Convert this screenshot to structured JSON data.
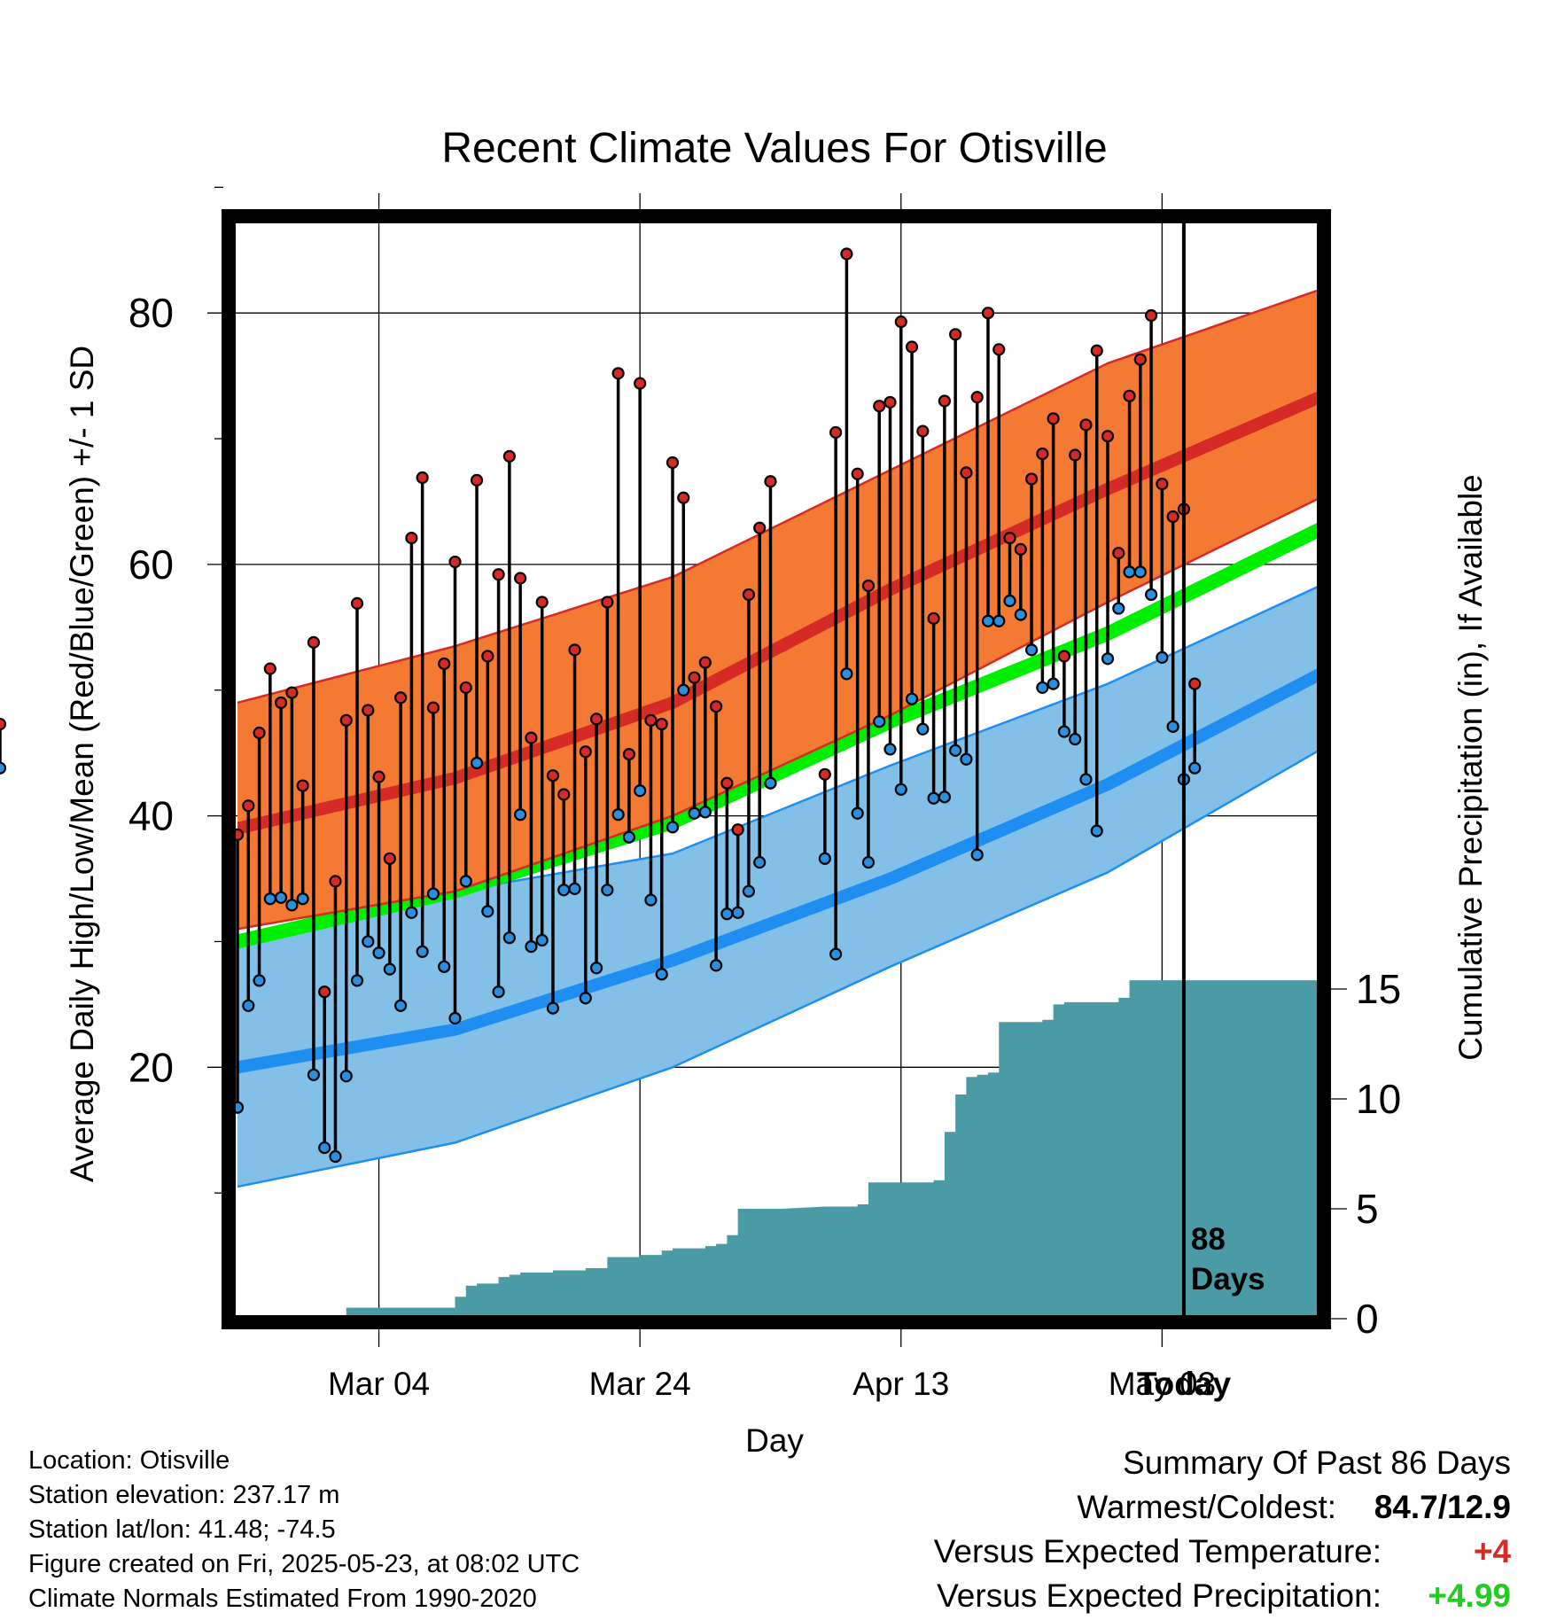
{
  "chart_data": {
    "type": "line",
    "title": "Recent Climate Values For Otisville",
    "xlabel": "Day",
    "ylabel": "Average Daily High/Low/Mean (Red/Blue/Green) +/- 1 SD",
    "y2label": "Cumulative Precipitation (in), If Available",
    "ylim": [
      0,
      90
    ],
    "y2lim": [
      0,
      20
    ],
    "x_tick_labels": [
      "Mar 04",
      "Mar 24",
      "Apr 13",
      "May 03",
      "Today"
    ],
    "y_tick_labels": [
      "20",
      "40",
      "60",
      "80"
    ],
    "y2_tick_labels": [
      "0",
      "5",
      "10",
      "15"
    ],
    "grid": true,
    "today_marker": {
      "label_line1": "88",
      "label_line2": "Days",
      "day_index": 87
    },
    "normals": {
      "day_index": [
        0,
        20,
        40,
        60,
        80,
        100
      ],
      "high_mean": [
        39,
        43,
        49,
        58,
        66,
        73.5
      ],
      "high_upper": [
        49,
        53.5,
        59,
        67.5,
        76,
        82
      ],
      "high_lower": [
        31,
        34,
        40,
        48,
        57,
        65.5
      ],
      "low_mean": [
        20,
        23,
        28.5,
        35,
        42.5,
        51.5
      ],
      "low_upper": [
        30,
        34,
        37,
        44,
        50.5,
        58.5
      ],
      "low_lower": [
        10.5,
        14,
        20,
        28,
        35.5,
        45.5
      ],
      "mean": [
        30,
        34,
        39.5,
        47.5,
        54.5,
        63
      ]
    },
    "series": [
      {
        "name": "Daily High",
        "day_index": [
          0,
          1,
          2,
          3,
          4,
          5,
          6,
          7,
          8,
          9,
          10,
          11,
          12,
          13,
          14,
          15,
          16,
          17,
          18,
          19,
          20,
          21,
          22,
          23,
          24,
          25,
          26,
          27,
          28,
          29,
          30,
          31,
          32,
          33,
          34,
          35,
          36,
          37,
          38,
          39,
          40,
          41,
          42,
          43,
          44,
          45,
          46,
          47,
          48,
          49,
          54,
          55,
          56,
          57,
          58,
          59,
          60,
          61,
          62,
          63,
          64,
          65,
          66,
          67,
          68,
          69,
          70,
          71,
          72,
          73,
          74,
          75,
          76,
          77,
          78,
          79,
          80,
          81,
          82,
          83,
          84,
          85,
          86,
          87,
          88
        ],
        "values": [
          38.5,
          40.8,
          46.6,
          51.7,
          49.0,
          49.8,
          42.4,
          53.8,
          26.0,
          34.8,
          47.6,
          56.9,
          48.4,
          43.1,
          36.6,
          49.4,
          62.1,
          66.9,
          48.6,
          52.1,
          60.2,
          50.2,
          66.7,
          52.7,
          59.2,
          68.6,
          58.9,
          46.2,
          57.0,
          43.2,
          41.7,
          53.2,
          45.1,
          47.7,
          57.0,
          75.2,
          44.9,
          74.4,
          47.6,
          47.3,
          68.1,
          65.3,
          51.0,
          52.2,
          48.7,
          42.6,
          38.9,
          57.6,
          62.9,
          66.6,
          43.3,
          70.5,
          84.7,
          67.2,
          58.3,
          72.6,
          72.9,
          79.3,
          77.3,
          70.6,
          55.7,
          73.0,
          78.3,
          67.3,
          73.3,
          80.0,
          77.1,
          62.1,
          61.2,
          66.8,
          68.8,
          71.6,
          52.7,
          68.7,
          71.1,
          77.0,
          70.2,
          60.9,
          73.4,
          76.3,
          79.8,
          66.4,
          63.8,
          64.4,
          50.5,
          47.3
        ]
      },
      {
        "name": "Daily Low",
        "day_index": [
          0,
          1,
          2,
          3,
          4,
          5,
          6,
          7,
          8,
          9,
          10,
          11,
          12,
          13,
          14,
          15,
          16,
          17,
          18,
          19,
          20,
          21,
          22,
          23,
          24,
          25,
          26,
          27,
          28,
          29,
          30,
          31,
          32,
          33,
          34,
          35,
          36,
          37,
          38,
          39,
          40,
          41,
          42,
          43,
          44,
          45,
          46,
          47,
          48,
          49,
          54,
          55,
          56,
          57,
          58,
          59,
          60,
          61,
          62,
          63,
          64,
          65,
          66,
          67,
          68,
          69,
          70,
          71,
          72,
          73,
          74,
          75,
          76,
          77,
          78,
          79,
          80,
          81,
          82,
          83,
          84,
          85,
          86,
          87,
          88
        ],
        "values": [
          16.8,
          24.9,
          26.9,
          33.4,
          33.5,
          32.9,
          33.4,
          19.4,
          13.6,
          12.9,
          19.3,
          26.9,
          30.0,
          29.1,
          27.8,
          24.9,
          32.3,
          29.2,
          33.8,
          28.0,
          23.9,
          34.8,
          44.2,
          32.4,
          26.0,
          30.3,
          40.1,
          29.6,
          30.1,
          24.7,
          34.1,
          34.2,
          25.5,
          27.9,
          34.1,
          40.1,
          38.3,
          42.0,
          33.3,
          27.4,
          39.1,
          50.0,
          40.2,
          40.3,
          28.1,
          32.2,
          32.3,
          34.0,
          36.3,
          42.6,
          36.6,
          29.0,
          51.3,
          40.2,
          36.3,
          47.5,
          45.3,
          42.1,
          49.3,
          46.9,
          41.4,
          41.5,
          45.2,
          44.5,
          36.9,
          55.5,
          55.5,
          57.1,
          56.0,
          53.2,
          50.2,
          50.5,
          46.7,
          46.1,
          42.9,
          38.8,
          52.5,
          56.5,
          59.4,
          59.4,
          57.6,
          52.6,
          47.1,
          42.9,
          43.8,
          43.8
        ]
      },
      {
        "name": "Cumulative Precipitation",
        "day_index": [
          0,
          9,
          10,
          11,
          19,
          20,
          21,
          22,
          23,
          24,
          25,
          26,
          27,
          28,
          29,
          30,
          31,
          32,
          33,
          34,
          35,
          36,
          37,
          38,
          39,
          40,
          41,
          42,
          43,
          44,
          45,
          46,
          47,
          48,
          49,
          54,
          55,
          56,
          57,
          58,
          59,
          60,
          61,
          62,
          63,
          64,
          65,
          66,
          67,
          68,
          69,
          70,
          71,
          72,
          73,
          74,
          75,
          76,
          77,
          78,
          79,
          80,
          81,
          82,
          83,
          84,
          85,
          86,
          87,
          88
        ],
        "values": [
          0,
          0,
          0.5,
          0.5,
          0.5,
          1.0,
          1.5,
          1.6,
          1.6,
          1.9,
          2.0,
          2.1,
          2.1,
          2.1,
          2.2,
          2.2,
          2.2,
          2.3,
          2.3,
          2.8,
          2.8,
          2.8,
          2.9,
          2.9,
          3.1,
          3.2,
          3.2,
          3.2,
          3.3,
          3.4,
          3.8,
          5.0,
          5.0,
          5.0,
          5.0,
          5.1,
          5.1,
          5.1,
          5.2,
          6.2,
          6.2,
          6.2,
          6.2,
          6.2,
          6.2,
          6.3,
          8.5,
          10.2,
          11.0,
          11.1,
          11.2,
          13.5,
          13.5,
          13.5,
          13.5,
          13.6,
          14.3,
          14.4,
          14.4,
          14.4,
          14.4,
          14.4,
          14.6,
          15.4,
          15.4,
          15.4,
          15.4,
          15.4,
          15.4,
          15.4
        ]
      }
    ]
  },
  "info": {
    "location": "Location: Otisville",
    "elevation": "Station elevation: 237.17 m",
    "latlon": "Station lat/lon: 41.48; -74.5",
    "created": "Figure created on Fri, 2025-05-23, at 08:02 UTC",
    "normals": "Climate Normals Estimated From 1990-2020"
  },
  "summary": {
    "heading": "Summary Of Past 86 Days",
    "warm_cold_label": "Warmest/Coldest:",
    "warm_cold_value": "84.7/12.9",
    "temp_label": "Versus Expected Temperature:",
    "temp_value": "+4",
    "precip_label": "Versus Expected Precipitation:",
    "precip_value": "+4.99"
  },
  "colors": {
    "high_band": "#f47932",
    "high_line": "#d62a26",
    "low_band": "#82c0e8",
    "low_line": "#1f8ef1",
    "mean_line": "#00ee00",
    "precip_fill": "#4a9ba5",
    "high_dot": "#d62a26",
    "low_dot": "#2b8fe0",
    "temp_value": "#d62a26",
    "precip_value": "#22cc22"
  }
}
